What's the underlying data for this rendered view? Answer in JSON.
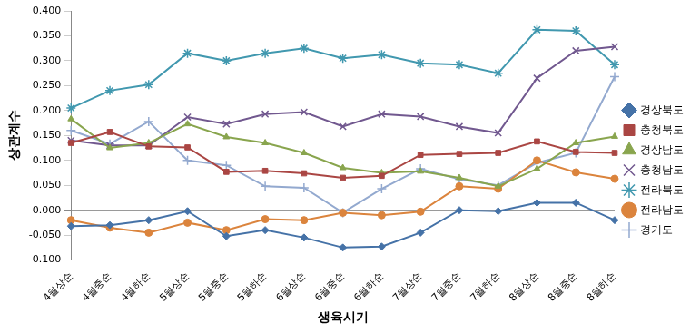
{
  "chart_data": {
    "type": "line",
    "x_label": "생육시기",
    "y_label": "상관계수",
    "categories": [
      "4월상순",
      "4월중순",
      "4월하순",
      "5월상순",
      "5월중순",
      "5월하순",
      "6월상순",
      "6월중순",
      "6월하순",
      "7월상순",
      "7월중순",
      "7월하순",
      "8월상순",
      "8월중순",
      "8월하순"
    ],
    "series": [
      {
        "name": "경상북도",
        "color": "#4572a7",
        "marker": "diamond",
        "values": [
          -0.032,
          -0.03,
          -0.02,
          -0.002,
          -0.052,
          -0.04,
          -0.055,
          -0.075,
          -0.073,
          -0.045,
          0.0,
          -0.002,
          0.015,
          0.015,
          -0.02
        ]
      },
      {
        "name": "충청북도",
        "color": "#aa4643",
        "marker": "square",
        "values": [
          0.135,
          0.157,
          0.128,
          0.126,
          0.077,
          0.079,
          0.074,
          0.065,
          0.069,
          0.111,
          0.113,
          0.115,
          0.138,
          0.117,
          0.115
        ]
      },
      {
        "name": "경상남도",
        "color": "#89a54e",
        "marker": "triangle",
        "values": [
          0.183,
          0.125,
          0.135,
          0.173,
          0.147,
          0.135,
          0.115,
          0.085,
          0.075,
          0.078,
          0.065,
          0.048,
          0.083,
          0.135,
          0.148
        ]
      },
      {
        "name": "충청남도",
        "color": "#71588f",
        "marker": "x",
        "values": [
          0.14,
          0.13,
          0.13,
          0.187,
          0.173,
          0.193,
          0.197,
          0.168,
          0.193,
          0.188,
          0.168,
          0.155,
          0.265,
          0.32,
          0.328
        ]
      },
      {
        "name": "전라북도",
        "color": "#4198af",
        "marker": "star",
        "values": [
          0.205,
          0.24,
          0.252,
          0.315,
          0.3,
          0.315,
          0.325,
          0.305,
          0.312,
          0.295,
          0.292,
          0.275,
          0.362,
          0.36,
          0.292
        ]
      },
      {
        "name": "전라남도",
        "color": "#db843d",
        "marker": "circle",
        "values": [
          -0.02,
          -0.035,
          -0.045,
          -0.025,
          -0.04,
          -0.018,
          -0.02,
          -0.005,
          -0.01,
          -0.003,
          0.048,
          0.043,
          0.1,
          0.076,
          0.063
        ]
      },
      {
        "name": "경기도",
        "color": "#93a9cf",
        "marker": "plus",
        "values": [
          0.16,
          0.133,
          0.178,
          0.1,
          0.09,
          0.048,
          0.045,
          -0.005,
          0.043,
          0.083,
          0.062,
          0.05,
          0.095,
          0.115,
          0.268
        ]
      }
    ],
    "ylim": [
      -0.1,
      0.4
    ],
    "yticks": [
      {
        "value": -0.1,
        "label": "-0.100"
      },
      {
        "value": -0.05,
        "label": "-0.050"
      },
      {
        "value": 0,
        "label": "0.000"
      },
      {
        "value": 0.05,
        "label": "0.050"
      },
      {
        "value": 0.1,
        "label": "0.100"
      },
      {
        "value": 0.15,
        "label": "0.150"
      },
      {
        "value": 0.2,
        "label": "0.200"
      },
      {
        "value": 0.25,
        "label": "0.250"
      },
      {
        "value": 0.3,
        "label": "0.300"
      },
      {
        "value": 0.35,
        "label": "0.350"
      },
      {
        "value": 0.4,
        "label": "0.400"
      }
    ],
    "grid": false,
    "legend": "right"
  }
}
